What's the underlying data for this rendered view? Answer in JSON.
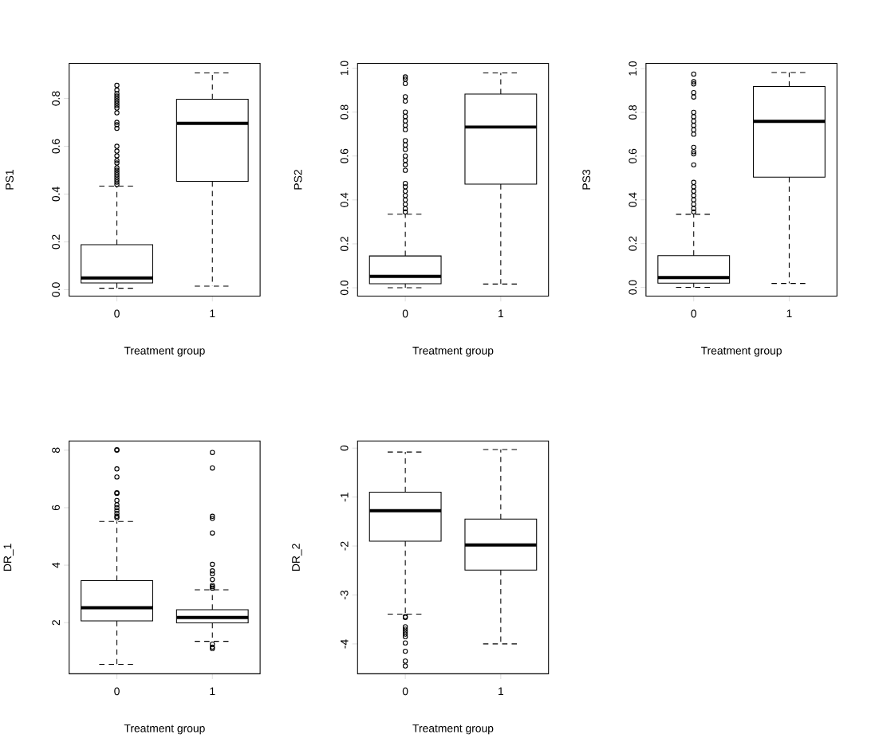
{
  "chart_data": [
    {
      "type": "box",
      "categories": [
        "0",
        "1"
      ],
      "xlabel": "Treatment group",
      "ylabel": "PS1",
      "ylim": [
        -0.027,
        0.947
      ],
      "yticks": [
        {
          "value": 0,
          "label": "0.0"
        },
        0.2,
        0.4,
        0.6,
        0.8
      ],
      "boxes": [
        {
          "low": 0.006,
          "q1": 0.028,
          "median": 0.049,
          "q3": 0.188,
          "high": 0.433,
          "outliers": [
            0.44,
            0.45,
            0.46,
            0.47,
            0.48,
            0.49,
            0.5,
            0.51,
            0.53,
            0.54,
            0.56,
            0.58,
            0.6,
            0.675,
            0.69,
            0.7,
            0.74,
            0.76,
            0.77,
            0.78,
            0.79,
            0.8,
            0.81,
            0.82,
            0.835,
            0.855
          ]
        },
        {
          "low": 0.015,
          "q1": 0.453,
          "median": 0.696,
          "q3": 0.797,
          "high": 0.907
        }
      ]
    },
    {
      "type": "box",
      "categories": [
        "0",
        "1"
      ],
      "xlabel": "Treatment group",
      "ylabel": "PS2",
      "ylim": [
        -0.038,
        1.022
      ],
      "yticks": [
        {
          "value": 0,
          "label": "0.0"
        },
        0.2,
        0.4,
        0.6,
        0.8,
        {
          "value": 1,
          "label": "1.0"
        }
      ],
      "boxes": [
        {
          "low": 0.0,
          "q1": 0.018,
          "median": 0.052,
          "q3": 0.145,
          "high": 0.335,
          "outliers": [
            0.345,
            0.36,
            0.38,
            0.4,
            0.42,
            0.44,
            0.46,
            0.475,
            0.535,
            0.56,
            0.58,
            0.6,
            0.63,
            0.65,
            0.67,
            0.72,
            0.74,
            0.76,
            0.78,
            0.8,
            0.85,
            0.87,
            0.93,
            0.95,
            0.96
          ]
        },
        {
          "low": 0.017,
          "q1": 0.472,
          "median": 0.732,
          "q3": 0.882,
          "high": 0.978
        }
      ]
    },
    {
      "type": "box",
      "categories": [
        "0",
        "1"
      ],
      "xlabel": "Treatment group",
      "ylabel": "PS3",
      "ylim": [
        -0.04,
        1.024
      ],
      "yticks": [
        {
          "value": 0,
          "label": "0.0"
        },
        0.2,
        0.4,
        0.6,
        0.8,
        {
          "value": 1,
          "label": "1.0"
        }
      ],
      "boxes": [
        {
          "low": 0.0,
          "q1": 0.019,
          "median": 0.045,
          "q3": 0.145,
          "high": 0.334,
          "outliers": [
            0.345,
            0.36,
            0.38,
            0.4,
            0.42,
            0.44,
            0.46,
            0.48,
            0.56,
            0.61,
            0.62,
            0.64,
            0.7,
            0.72,
            0.74,
            0.76,
            0.78,
            0.8,
            0.87,
            0.89,
            0.93,
            0.94,
            0.975
          ]
        },
        {
          "low": 0.018,
          "q1": 0.504,
          "median": 0.759,
          "q3": 0.918,
          "high": 0.982
        }
      ]
    },
    {
      "type": "box",
      "categories": [
        "0",
        "1"
      ],
      "xlabel": "Treatment group",
      "ylabel": "DR_1",
      "ylim": [
        0.22,
        8.32
      ],
      "yticks": [
        2,
        4,
        6,
        8
      ],
      "boxes": [
        {
          "low": 0.55,
          "q1": 2.06,
          "median": 2.52,
          "q3": 3.46,
          "high": 5.52,
          "outliers": [
            5.65,
            5.7,
            5.8,
            5.9,
            6.0,
            6.1,
            6.25,
            6.5,
            6.52,
            7.07,
            7.35,
            8.0,
            8.02
          ]
        },
        {
          "low": 1.35,
          "q1": 1.99,
          "median": 2.18,
          "q3": 2.45,
          "high": 3.14,
          "outliers": [
            1.1,
            1.15,
            1.25,
            3.2,
            3.25,
            3.3,
            3.5,
            3.7,
            3.8,
            4.03,
            5.12,
            5.63,
            5.7,
            7.38,
            7.92
          ]
        }
      ]
    },
    {
      "type": "box",
      "categories": [
        "0",
        "1"
      ],
      "xlabel": "Treatment group",
      "ylabel": "DR_2",
      "ylim": [
        -4.61,
        0.145
      ],
      "yticks": [
        {
          "value": -4,
          "label": "-4"
        },
        {
          "value": -3,
          "label": "-3"
        },
        {
          "value": -2,
          "label": "-2"
        },
        {
          "value": -1,
          "label": "-1"
        },
        0
      ],
      "boxes": [
        {
          "low": -3.39,
          "q1": -1.9,
          "median": -1.28,
          "q3": -0.9,
          "high": -0.08,
          "outliers": [
            -3.44,
            -3.46,
            -3.65,
            -3.7,
            -3.75,
            -3.8,
            -3.85,
            -3.98,
            -4.15,
            -4.35,
            -4.45
          ]
        },
        {
          "low": -4.0,
          "q1": -2.49,
          "median": -1.98,
          "q3": -1.45,
          "high": -0.03
        }
      ]
    }
  ]
}
